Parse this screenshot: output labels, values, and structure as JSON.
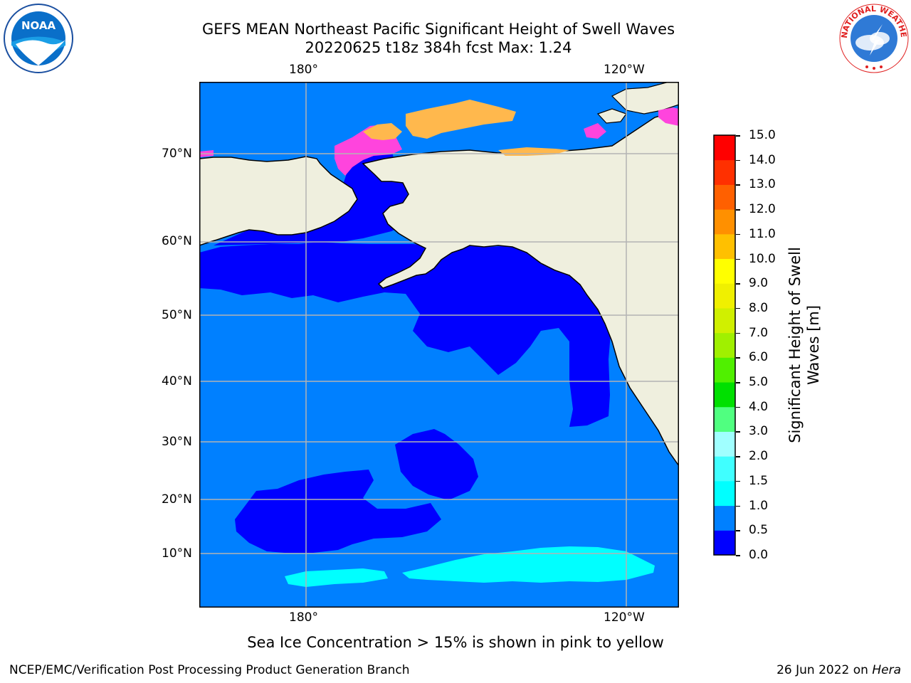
{
  "title": {
    "line1": "GEFS MEAN Northeast Pacific Significant Height of Swell Waves",
    "line2": "20220625 t18z 384h fcst   Max: 1.24"
  },
  "logos": {
    "noaa_text": "NOAA",
    "nws_text": "NATIONAL WEATHER SERVICE"
  },
  "map": {
    "lon_labels_top": [
      "180°",
      "120°W"
    ],
    "lon_labels_bottom": [
      "180°",
      "120°W"
    ],
    "lat_labels": [
      "70°N",
      "60°N",
      "50°N",
      "40°N",
      "30°N",
      "20°N",
      "10°N"
    ],
    "colors": {
      "land": "#efefde",
      "ice_pink": "#ff44dd",
      "ice_orange": "#ffb84d",
      "grid": "#b3b3b3",
      "coast": "#000000"
    }
  },
  "colorbar": {
    "label_line1": "Significant Height of Swell",
    "label_line2": "Waves [m]",
    "ticks": [
      "0.0",
      "0.5",
      "1.0",
      "1.5",
      "2.0",
      "3.0",
      "4.0",
      "5.0",
      "6.0",
      "7.0",
      "8.0",
      "9.0",
      "10.0",
      "11.0",
      "12.0",
      "13.0",
      "14.0",
      "15.0"
    ],
    "colors": [
      "#0000ff",
      "#0080ff",
      "#00ffff",
      "#40ffff",
      "#a0ffff",
      "#50ff80",
      "#00e000",
      "#50f000",
      "#a0f000",
      "#d0f000",
      "#f0f000",
      "#ffff00",
      "#ffc000",
      "#ff9000",
      "#ff6000",
      "#ff3000",
      "#ff0000"
    ]
  },
  "caption": "Sea Ice Concentration > 15% is shown in pink to yellow",
  "footer": {
    "left": "NCEP/EMC/Verification Post Processing Product Generation Branch",
    "right_prefix": "26 Jun 2022 on ",
    "right_host": "Hera"
  }
}
